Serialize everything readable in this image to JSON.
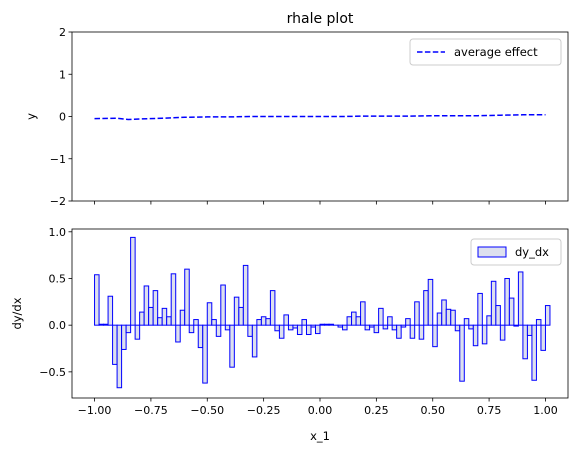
{
  "chart_data": [
    {
      "type": "line",
      "title": "rhale plot",
      "xlabel": "",
      "ylabel": "y",
      "xlim": [
        -1.1,
        1.1
      ],
      "ylim": [
        -2,
        2
      ],
      "yticks": [
        -2,
        -1,
        0,
        1,
        2
      ],
      "ytick_labels": [
        "−2",
        "−1",
        "0",
        "1",
        "2"
      ],
      "x_tick_labels_visible": false,
      "legend_position": "upper right",
      "series": [
        {
          "name": "average effect",
          "color": "#0000ff",
          "linestyle": "dashed",
          "x": [
            -1.0,
            -0.9,
            -0.85,
            -0.8,
            -0.7,
            -0.6,
            -0.5,
            -0.4,
            -0.3,
            -0.2,
            -0.1,
            0.0,
            0.1,
            0.2,
            0.3,
            0.4,
            0.5,
            0.6,
            0.7,
            0.8,
            0.9,
            1.0
          ],
          "y": [
            -0.05,
            -0.04,
            -0.07,
            -0.06,
            -0.04,
            -0.02,
            -0.01,
            -0.01,
            0.0,
            0.0,
            0.0,
            0.0,
            0.0,
            0.01,
            0.01,
            0.01,
            0.02,
            0.02,
            0.02,
            0.03,
            0.04,
            0.04
          ]
        }
      ]
    },
    {
      "type": "bar",
      "title": "",
      "xlabel": "x_1",
      "ylabel": "dy/dx",
      "xlim": [
        -1.1,
        1.1
      ],
      "ylim": [
        -0.78,
        1.03
      ],
      "xticks": [
        -1.0,
        -0.75,
        -0.5,
        -0.25,
        0.0,
        0.25,
        0.5,
        0.75,
        1.0
      ],
      "xtick_labels": [
        "−1.00",
        "−0.75",
        "−0.50",
        "−0.25",
        "0.00",
        "0.25",
        "0.50",
        "0.75",
        "1.00"
      ],
      "yticks": [
        -0.5,
        0.0,
        0.5,
        1.0
      ],
      "ytick_labels": [
        "−0.5",
        "0.0",
        "0.5",
        "1.0"
      ],
      "legend_position": "upper right",
      "series": [
        {
          "name": "dy_dx",
          "edge_color": "#0000ff",
          "fill_color": "#dde0ee",
          "bin_start": -1.0,
          "bin_width": 0.02,
          "values": [
            0.54,
            0.01,
            0.01,
            0.31,
            -0.42,
            -0.67,
            -0.26,
            -0.08,
            0.94,
            -0.15,
            0.14,
            0.42,
            0.19,
            0.37,
            0.08,
            0.18,
            0.09,
            0.55,
            -0.18,
            0.16,
            0.6,
            -0.08,
            0.06,
            -0.24,
            -0.62,
            0.24,
            0.06,
            -0.12,
            0.43,
            -0.05,
            -0.45,
            0.3,
            0.19,
            0.64,
            -0.12,
            -0.34,
            0.06,
            0.09,
            0.07,
            0.37,
            -0.06,
            -0.14,
            0.11,
            -0.05,
            -0.03,
            -0.1,
            0.06,
            -0.1,
            -0.02,
            -0.09,
            0.01,
            0.01,
            0.01,
            0.0,
            -0.02,
            -0.05,
            0.09,
            0.14,
            0.09,
            0.25,
            -0.05,
            -0.02,
            -0.08,
            0.18,
            -0.04,
            0.09,
            -0.05,
            -0.14,
            -0.02,
            0.07,
            -0.14,
            0.25,
            -0.15,
            0.37,
            0.49,
            -0.23,
            0.13,
            0.27,
            0.17,
            0.16,
            -0.06,
            -0.6,
            0.07,
            -0.04,
            -0.22,
            0.34,
            -0.2,
            0.1,
            0.47,
            0.21,
            -0.16,
            0.5,
            0.29,
            -0.01,
            0.57,
            -0.36,
            -0.11,
            -0.59,
            0.06,
            -0.27,
            0.21
          ]
        }
      ]
    }
  ]
}
